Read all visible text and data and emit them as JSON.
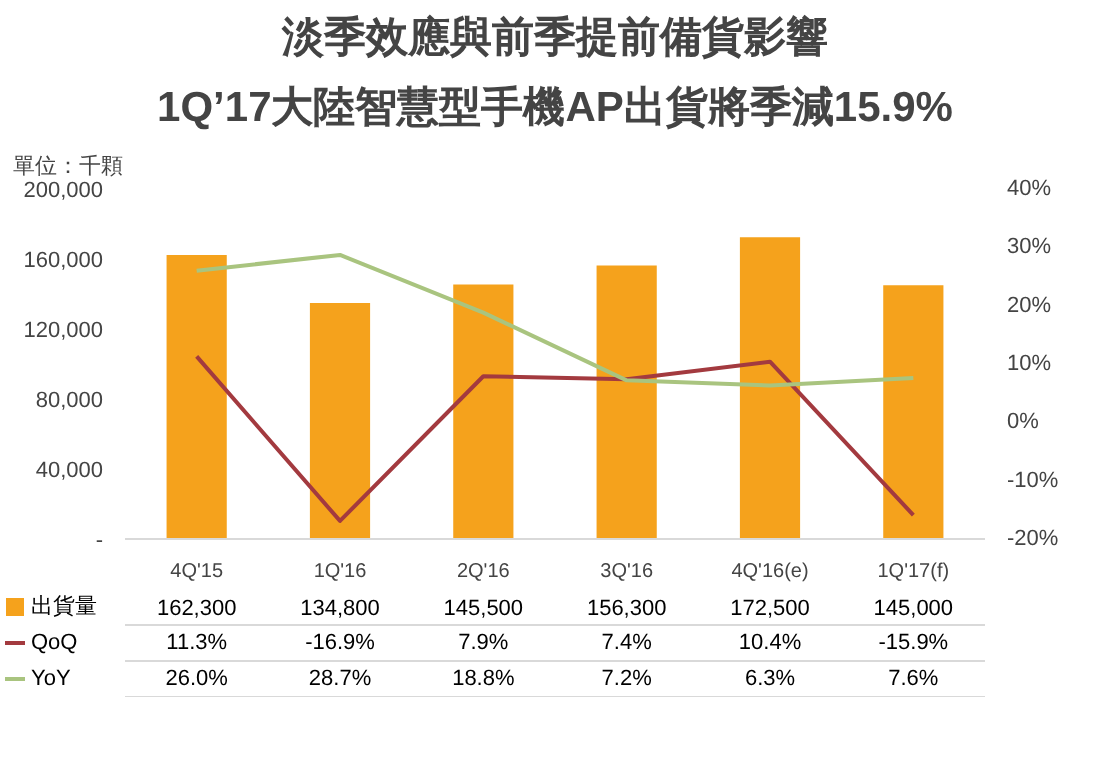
{
  "chart_data": {
    "type": "bar",
    "title": "淡季效應與前季提前備貨影響",
    "subtitle": "1Q’17大陸智慧型手機AP出貨將季減15.9%",
    "annotations": [
      "單位：千顆"
    ],
    "categories": [
      "4Q'15",
      "1Q'16",
      "2Q'16",
      "3Q'16",
      "4Q'16(e)",
      "1Q'17(f)"
    ],
    "series": [
      {
        "name": "出貨量",
        "color": "#f5a21c",
        "values": [
          162300,
          134800,
          145500,
          156300,
          172500,
          145000
        ],
        "value_labels": [
          "162,300",
          "134,800",
          "145,500",
          "156,300",
          "172,500",
          "145,000"
        ]
      },
      {
        "name": "QoQ",
        "type": "line",
        "axis": "y2",
        "color": "#a33a3f",
        "values": [
          11.3,
          -16.9,
          7.9,
          7.4,
          10.4,
          -15.9
        ],
        "value_labels": [
          "11.3%",
          "-16.9%",
          "7.9%",
          "7.4%",
          "10.4%",
          "-15.9%"
        ]
      },
      {
        "name": "YoY",
        "type": "line",
        "axis": "y2",
        "color": "#a9c47f",
        "values": [
          26.0,
          28.7,
          18.8,
          7.2,
          6.3,
          7.6
        ],
        "value_labels": [
          "26.0%",
          "28.7%",
          "18.8%",
          "7.2%",
          "6.3%",
          "7.6%"
        ]
      }
    ],
    "ylim": [
      0,
      200000
    ],
    "yticks": [
      {
        "value": 0,
        "label": "-"
      },
      {
        "value": 40000,
        "label": "40,000"
      },
      {
        "value": 80000,
        "label": "80,000"
      },
      {
        "value": 120000,
        "label": "120,000"
      },
      {
        "value": 160000,
        "label": "160,000"
      },
      {
        "value": 200000,
        "label": "200,000"
      }
    ],
    "y2lim": [
      -20,
      40
    ],
    "y2ticks": [
      {
        "value": -20,
        "label": "-20%"
      },
      {
        "value": -10,
        "label": "-10%"
      },
      {
        "value": 0,
        "label": "0%"
      },
      {
        "value": 10,
        "label": "10%"
      },
      {
        "value": 20,
        "label": "20%"
      },
      {
        "value": 30,
        "label": "30%"
      },
      {
        "value": 40,
        "label": "40%"
      }
    ],
    "grid": false,
    "legend": "bottom",
    "marker": "none",
    "line_style": "solid"
  }
}
